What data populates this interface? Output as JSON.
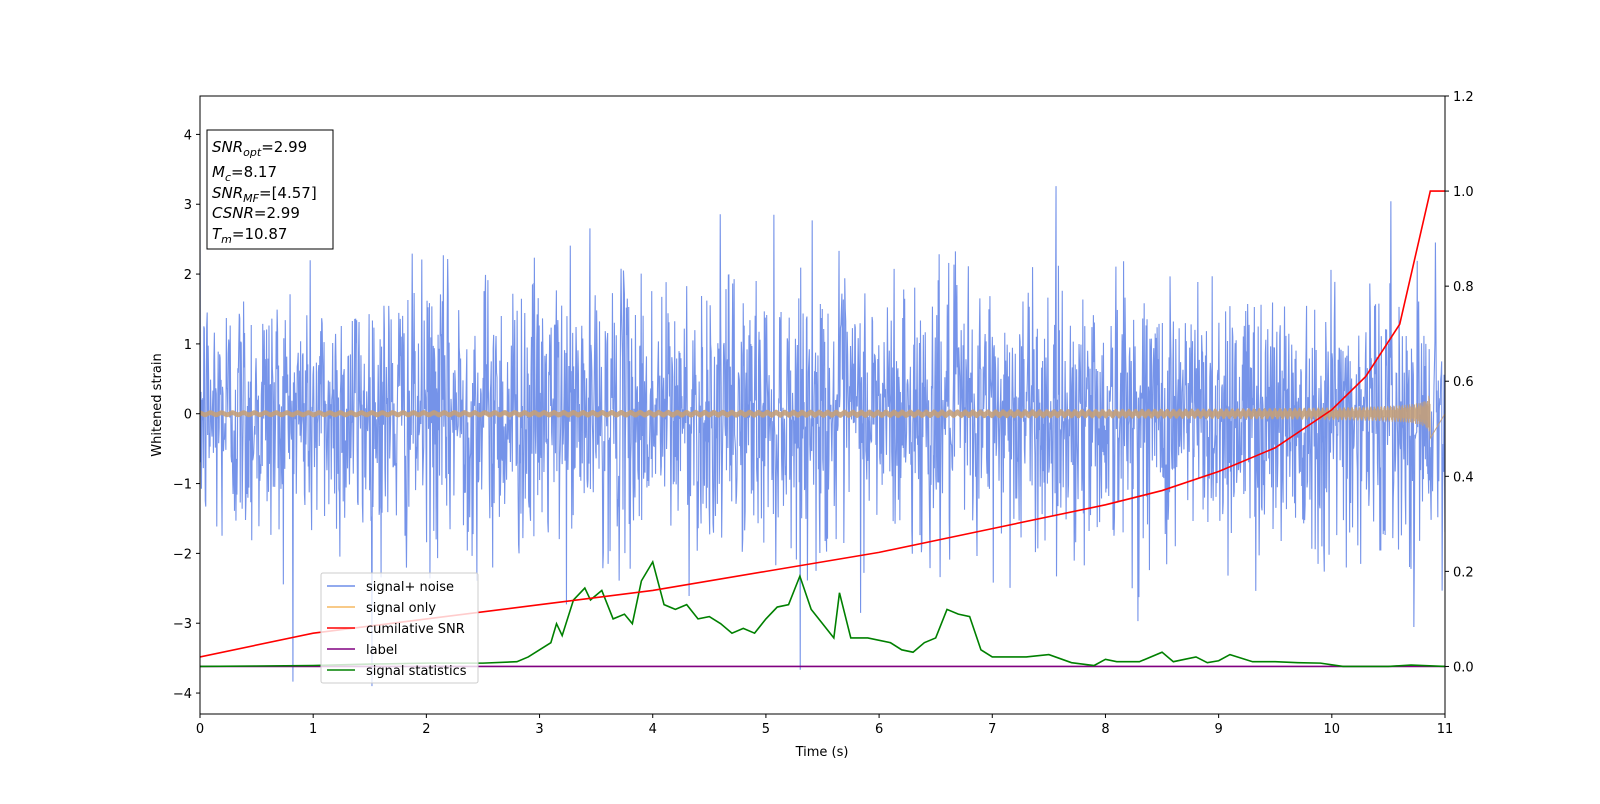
{
  "chart_data": {
    "type": "line",
    "xlabel": "Time (s)",
    "ylabel": "Whitened strain",
    "xlim": [
      0,
      11
    ],
    "ylim": [
      -4.3,
      4.55
    ],
    "y2lim": [
      -0.1,
      1.2
    ],
    "xticks": [
      "0",
      "1",
      "2",
      "3",
      "4",
      "5",
      "6",
      "7",
      "8",
      "9",
      "10",
      "11"
    ],
    "yticks": [
      "4",
      "3",
      "2",
      "1",
      "0",
      "−1",
      "−2",
      "−3",
      "−4"
    ],
    "yticks_values": [
      4,
      3,
      2,
      1,
      0,
      -1,
      -2,
      -3,
      -4
    ],
    "y2ticks": [
      "1.2",
      "1.0",
      "0.8",
      "0.6",
      "0.4",
      "0.2",
      "0.0"
    ],
    "y2ticks_values": [
      1.2,
      1.0,
      0.8,
      0.6,
      0.4,
      0.2,
      0.0
    ],
    "grid": false,
    "legend_position": "lower-left",
    "info_box": {
      "snr_opt": "=2.99",
      "mc": "=8.17",
      "snr_mf": "=[4.57]",
      "csnr": "=2.99",
      "tm": "=10.87"
    },
    "series": [
      {
        "name": "signal+ noise",
        "color": "#6e8de8",
        "axis": "left",
        "kind": "noise",
        "sigma": 0.95,
        "range": [
          -3.9,
          4.2
        ],
        "x_range": [
          0,
          11
        ]
      },
      {
        "name": "signal only",
        "color": "#f5b960",
        "axis": "left",
        "kind": "chirp",
        "merger_time": 10.87,
        "peak_amplitude": 0.35
      },
      {
        "name": "cumilative SNR",
        "color": "#ff0000",
        "axis": "right",
        "x": [
          0,
          1,
          2,
          3,
          4,
          5,
          6,
          7,
          8,
          8.5,
          9,
          9.5,
          10,
          10.3,
          10.6,
          10.87,
          11
        ],
        "y": [
          0.02,
          0.07,
          0.1,
          0.13,
          0.16,
          0.2,
          0.24,
          0.29,
          0.34,
          0.37,
          0.41,
          0.46,
          0.54,
          0.61,
          0.72,
          1.0,
          1.0
        ]
      },
      {
        "name": "label",
        "color": "#800080",
        "axis": "right",
        "x": [
          0,
          11
        ],
        "y": [
          0.0,
          0.0
        ]
      },
      {
        "name": "signal statistics",
        "color": "#008000",
        "axis": "right",
        "x": [
          0,
          0.5,
          1,
          1.5,
          2,
          2.5,
          2.8,
          2.9,
          3.0,
          3.1,
          3.15,
          3.2,
          3.3,
          3.4,
          3.45,
          3.55,
          3.65,
          3.75,
          3.82,
          3.9,
          4.0,
          4.1,
          4.2,
          4.3,
          4.4,
          4.5,
          4.6,
          4.7,
          4.8,
          4.9,
          5.0,
          5.1,
          5.2,
          5.3,
          5.4,
          5.5,
          5.6,
          5.65,
          5.75,
          5.9,
          6.1,
          6.2,
          6.3,
          6.4,
          6.5,
          6.6,
          6.7,
          6.8,
          6.9,
          7.0,
          7.1,
          7.3,
          7.5,
          7.7,
          7.9,
          8.0,
          8.1,
          8.3,
          8.5,
          8.6,
          8.7,
          8.8,
          8.9,
          9.0,
          9.1,
          9.3,
          9.5,
          9.7,
          9.9,
          10.1,
          10.3,
          10.5,
          10.7,
          11
        ],
        "y": [
          0.0,
          0.001,
          0.002,
          0.005,
          0.007,
          0.007,
          0.01,
          0.02,
          0.035,
          0.05,
          0.09,
          0.065,
          0.14,
          0.165,
          0.14,
          0.16,
          0.1,
          0.11,
          0.09,
          0.18,
          0.22,
          0.13,
          0.12,
          0.13,
          0.1,
          0.105,
          0.09,
          0.07,
          0.08,
          0.07,
          0.1,
          0.125,
          0.13,
          0.19,
          0.12,
          0.09,
          0.06,
          0.155,
          0.06,
          0.06,
          0.05,
          0.035,
          0.03,
          0.05,
          0.06,
          0.12,
          0.11,
          0.105,
          0.035,
          0.02,
          0.02,
          0.02,
          0.025,
          0.008,
          0.002,
          0.015,
          0.01,
          0.01,
          0.03,
          0.01,
          0.015,
          0.02,
          0.008,
          0.012,
          0.025,
          0.01,
          0.01,
          0.008,
          0.007,
          0.0,
          0.0,
          0.0,
          0.003,
          0.0
        ]
      }
    ]
  }
}
